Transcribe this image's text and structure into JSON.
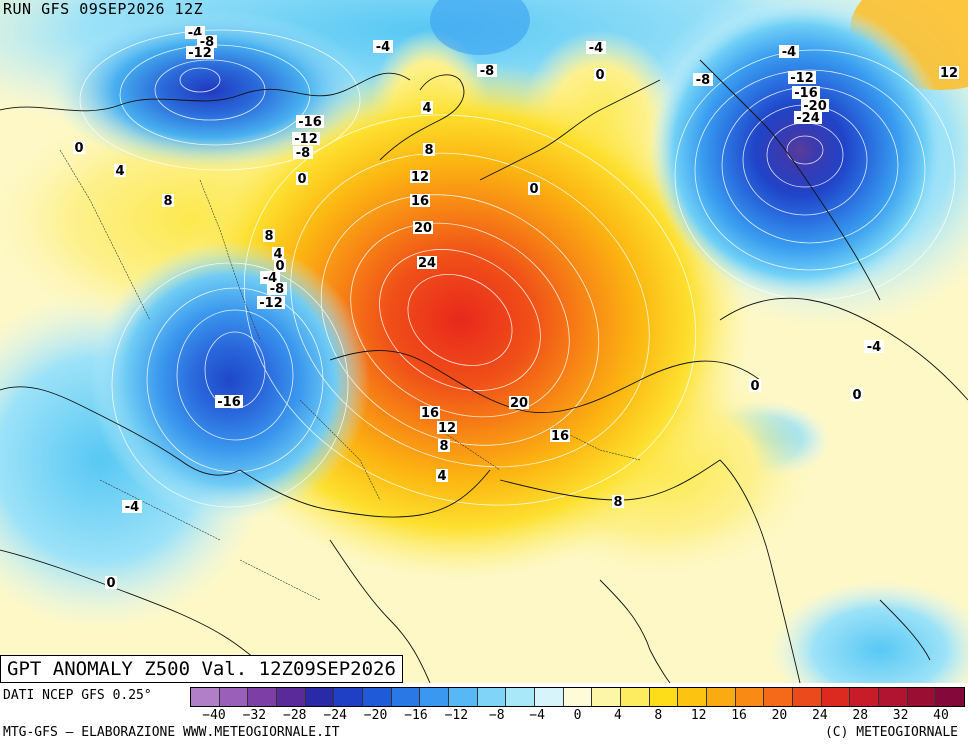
{
  "header": {
    "run_label": "RUN GFS 09SEP2026 12Z"
  },
  "map": {
    "title": "GPT ANOMALY Z500 Val. 12Z09SEP2026",
    "contour_labels": [
      {
        "text": "-4"
      },
      {
        "text": "-8"
      },
      {
        "text": "-12"
      },
      {
        "text": "-4"
      },
      {
        "text": "-8"
      },
      {
        "text": "-4"
      },
      {
        "text": "0"
      },
      {
        "text": "-8"
      },
      {
        "text": "-4"
      },
      {
        "text": "-12"
      },
      {
        "text": "-16"
      },
      {
        "text": "-20"
      },
      {
        "text": "-24"
      },
      {
        "text": "12"
      },
      {
        "text": "0"
      },
      {
        "text": "4"
      },
      {
        "text": "-16"
      },
      {
        "text": "-12"
      },
      {
        "text": "-8"
      },
      {
        "text": "0"
      },
      {
        "text": "8"
      },
      {
        "text": "4"
      },
      {
        "text": "8"
      },
      {
        "text": "12"
      },
      {
        "text": "16"
      },
      {
        "text": "20"
      },
      {
        "text": "0"
      },
      {
        "text": "8"
      },
      {
        "text": "4"
      },
      {
        "text": "0"
      },
      {
        "text": "-4"
      },
      {
        "text": "-8"
      },
      {
        "text": "-12"
      },
      {
        "text": "24"
      },
      {
        "text": "-16"
      },
      {
        "text": "16"
      },
      {
        "text": "12"
      },
      {
        "text": "8"
      },
      {
        "text": "20"
      },
      {
        "text": "16"
      },
      {
        "text": "4"
      },
      {
        "text": "0"
      },
      {
        "text": "-4"
      },
      {
        "text": "0"
      },
      {
        "text": "8"
      },
      {
        "text": "-4"
      },
      {
        "text": "0"
      }
    ]
  },
  "legend": {
    "values": [
      -40,
      -32,
      -28,
      -24,
      -20,
      -16,
      -12,
      -8,
      -4,
      0,
      4,
      8,
      12,
      16,
      20,
      24,
      28,
      32,
      40
    ],
    "colors": [
      "#b07fc8",
      "#9a5fb8",
      "#7d3fa6",
      "#5a2a9a",
      "#2a2aa8",
      "#1f3fc4",
      "#1f5ad8",
      "#2a78e6",
      "#3a98f0",
      "#58b8f5",
      "#7fd4f7",
      "#a8e8f8",
      "#d8f4fb",
      "#fdfbd8",
      "#fdf5a8",
      "#fdeb60",
      "#fddc1a",
      "#fcc410",
      "#fbab12",
      "#f98a14",
      "#f46a18",
      "#ea4a1c",
      "#dc2a20",
      "#c81c28",
      "#b01430",
      "#9a0e34",
      "#84083a"
    ],
    "source": "DATI NCEP GFS 0.25°"
  },
  "footer": {
    "credit": "MTG-GFS – ELABORAZIONE WWW.METEOGIORNALE.IT",
    "copyright": "(C) METEOGIORNALE"
  }
}
